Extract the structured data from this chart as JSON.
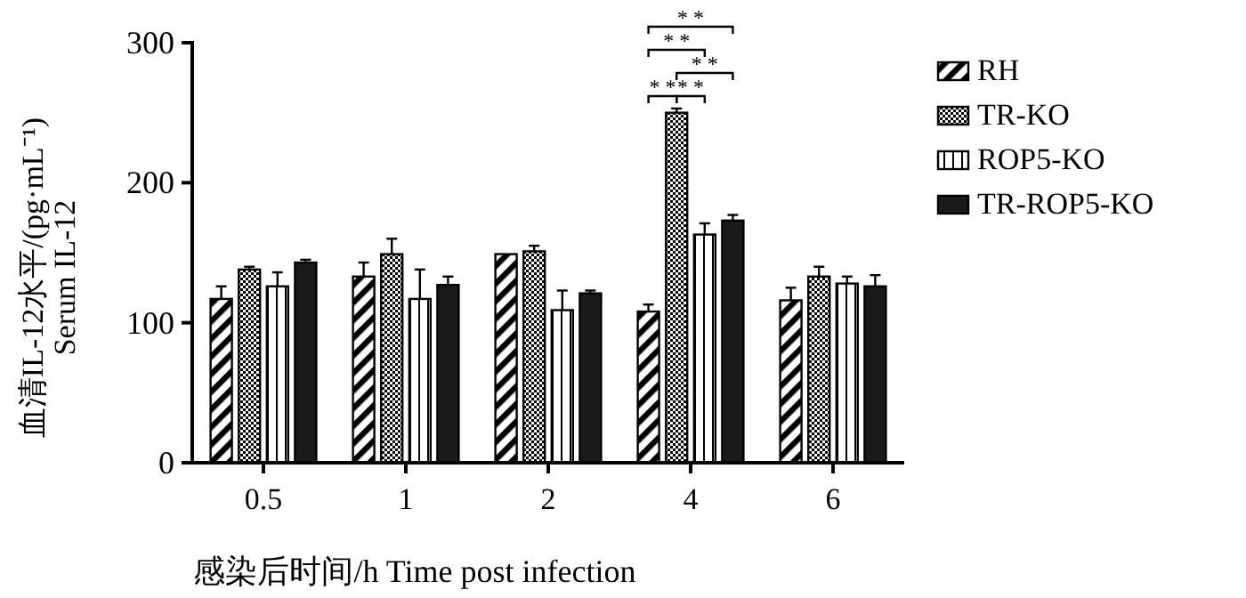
{
  "chart_data": {
    "type": "bar",
    "xlabel": "感染后时间/h Time post infection",
    "ylabel": "血清IL-12水平/(pg·mL⁻¹)\nSerum IL-12",
    "categories": [
      "0.5",
      "1",
      "2",
      "4",
      "6"
    ],
    "ylim": [
      0,
      300
    ],
    "yticks": [
      0,
      100,
      200,
      300
    ],
    "grid": false,
    "legend": "right",
    "series": [
      {
        "name": "RH",
        "color": "#000000",
        "values": [
          117,
          133,
          149,
          108,
          116
        ],
        "errors": [
          9,
          10,
          0,
          5,
          9
        ]
      },
      {
        "name": "TR-KO",
        "color": "#000000",
        "values": [
          138,
          149,
          151,
          250,
          133
        ],
        "errors": [
          2,
          11,
          4,
          3,
          7
        ]
      },
      {
        "name": "ROP5-KO",
        "color": "#000000",
        "values": [
          126,
          117,
          109,
          163,
          128
        ],
        "errors": [
          10,
          21,
          14,
          8,
          5
        ]
      },
      {
        "name": "TR-ROP5-KO",
        "color": "#1a1a1a",
        "values": [
          143,
          127,
          121,
          173,
          126
        ],
        "errors": [
          2,
          6,
          2,
          4,
          8
        ]
      }
    ],
    "annotations": [
      "* *",
      "* *",
      "* *",
      "* *",
      "* *"
    ]
  }
}
